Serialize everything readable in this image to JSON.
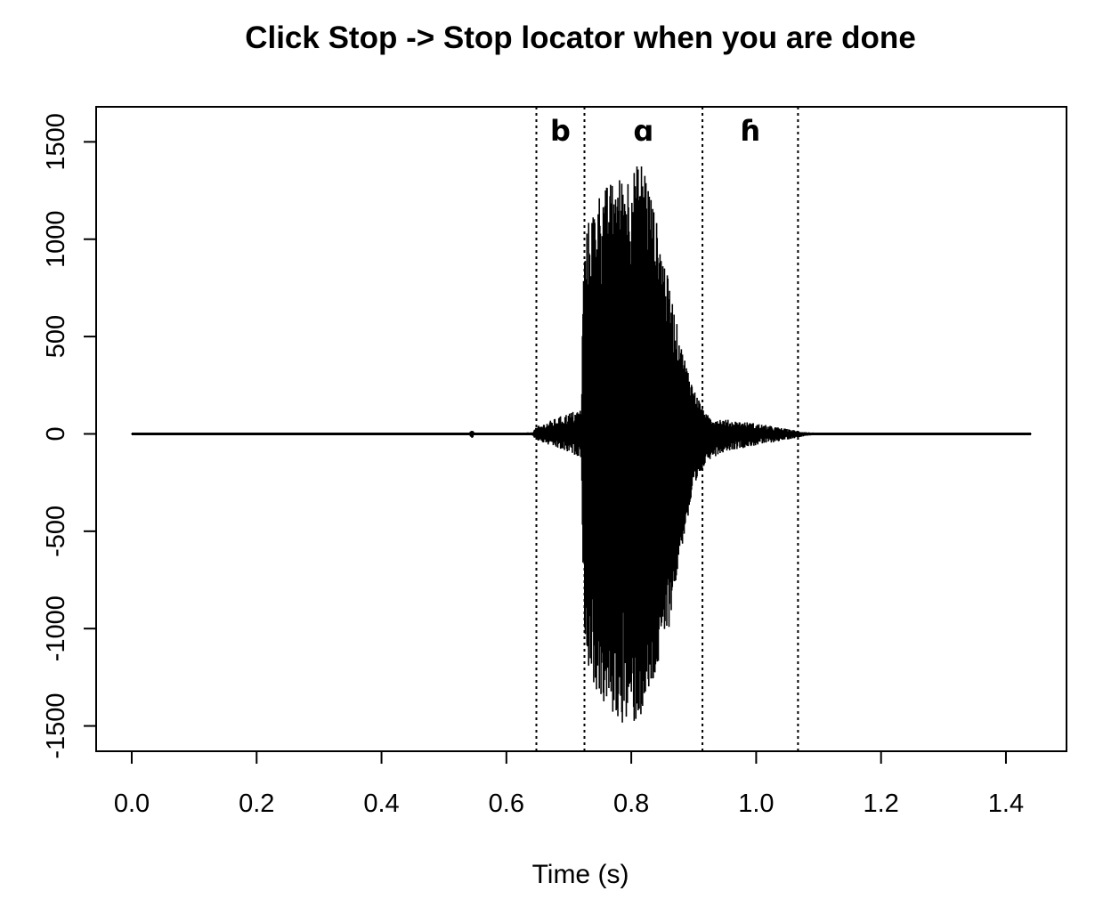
{
  "chart_data": {
    "type": "line",
    "title": "Click Stop -> Stop locator when you are done",
    "xlabel": "Time (s)",
    "ylabel": "",
    "xlim": [
      -0.057,
      1.497
    ],
    "ylim": [
      -1630,
      1680
    ],
    "xticks": [
      0.0,
      0.2,
      0.4,
      0.6,
      0.8,
      1.0,
      1.2,
      1.4
    ],
    "xtick_labels": [
      "0.0",
      "0.2",
      "0.4",
      "0.6",
      "0.8",
      "1.0",
      "1.2",
      "1.4"
    ],
    "yticks": [
      -1500,
      -1000,
      -500,
      0,
      500,
      1000,
      1500
    ],
    "ytick_labels": [
      "-1500",
      "-1000",
      "-500",
      "0",
      "500",
      "1000",
      "1500"
    ],
    "grid": false,
    "signal_range": [
      0.0,
      1.44
    ],
    "envelope": {
      "t": [
        0.0,
        0.54,
        0.545,
        0.55,
        0.64,
        0.65,
        0.7,
        0.72,
        0.723,
        0.73,
        0.75,
        0.78,
        0.8,
        0.82,
        0.84,
        0.86,
        0.88,
        0.9,
        0.92,
        0.95,
        1.0,
        1.05,
        1.08,
        1.1,
        1.44
      ],
      "pos": [
        3,
        3,
        25,
        3,
        8,
        40,
        110,
        130,
        850,
        1080,
        1250,
        1320,
        1350,
        1420,
        1100,
        780,
        450,
        230,
        100,
        75,
        55,
        25,
        10,
        5,
        3
      ],
      "neg": [
        -3,
        -3,
        -25,
        -3,
        -8,
        -35,
        -100,
        -120,
        -900,
        -1200,
        -1380,
        -1480,
        -1510,
        -1450,
        -1250,
        -1000,
        -600,
        -300,
        -140,
        -90,
        -60,
        -30,
        -10,
        -5,
        -3
      ]
    },
    "segments": [
      {
        "label": "b",
        "start": 0.648,
        "end": 0.725
      },
      {
        "label": "ɑ",
        "start": 0.725,
        "end": 0.914
      },
      {
        "label": "ɦ",
        "start": 0.914,
        "end": 1.067
      }
    ]
  }
}
